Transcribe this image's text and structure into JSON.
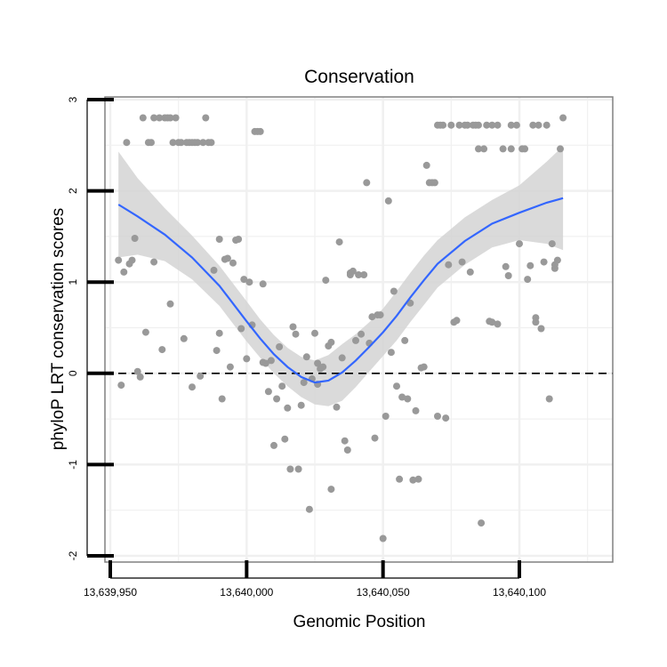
{
  "chart_data": {
    "type": "scatter",
    "title": "Conservation",
    "xlabel": "Genomic Position",
    "ylabel": "phyloP LRT conservation scores",
    "xlim": [
      13639950,
      13640105
    ],
    "ylim": [
      -2,
      3
    ],
    "x_ticks": [
      13639950,
      13640000,
      13640050,
      13640100
    ],
    "x_tick_labels": [
      "13,639,950",
      "13,640,000",
      "13,640,050",
      "13,640,100"
    ],
    "y_ticks": [
      -2,
      -1,
      0,
      1,
      2,
      3
    ],
    "y_tick_labels": [
      "-2",
      "-1",
      "0",
      "1",
      "2",
      "3"
    ],
    "grid": true,
    "reference_line": {
      "y": 0,
      "style": "dashed"
    },
    "colors": {
      "points": "#999999",
      "smooth_line": "#3366ff",
      "confidence_band": "#d4d4d4",
      "grid": "#f0f0f0",
      "frame": "#808080"
    },
    "points": [
      [
        13639953,
        1.24
      ],
      [
        13639954,
        -0.13
      ],
      [
        13639955,
        1.11
      ],
      [
        13639956,
        2.53
      ],
      [
        13639957,
        1.2
      ],
      [
        13639958,
        1.24
      ],
      [
        13639959,
        1.48
      ],
      [
        13639960,
        0.02
      ],
      [
        13639961,
        -0.04
      ],
      [
        13639962,
        2.8
      ],
      [
        13639963,
        0.45
      ],
      [
        13639964,
        2.53
      ],
      [
        13639965,
        2.53
      ],
      [
        13639966,
        1.22
      ],
      [
        13639966,
        2.8
      ],
      [
        13639968,
        2.8
      ],
      [
        13639969,
        0.26
      ],
      [
        13639970,
        2.8
      ],
      [
        13639971,
        2.8
      ],
      [
        13639972,
        0.76
      ],
      [
        13639972,
        2.8
      ],
      [
        13639973,
        2.53
      ],
      [
        13639974,
        2.8
      ],
      [
        13639975,
        2.53
      ],
      [
        13639976,
        2.53
      ],
      [
        13639977,
        0.38
      ],
      [
        13639978,
        2.53
      ],
      [
        13639979,
        2.53
      ],
      [
        13639980,
        -0.15
      ],
      [
        13639980,
        2.53
      ],
      [
        13639981,
        2.53
      ],
      [
        13639982,
        2.53
      ],
      [
        13639983,
        -0.03
      ],
      [
        13639984,
        2.53
      ],
      [
        13639985,
        2.8
      ],
      [
        13639986,
        2.53
      ],
      [
        13639987,
        2.53
      ],
      [
        13639988,
        1.13
      ],
      [
        13639989,
        0.25
      ],
      [
        13639990,
        0.44
      ],
      [
        13639990,
        1.47
      ],
      [
        13639991,
        -0.28
      ],
      [
        13639992,
        1.25
      ],
      [
        13639993,
        1.26
      ],
      [
        13639994,
        0.07
      ],
      [
        13639995,
        1.21
      ],
      [
        13639996,
        1.46
      ],
      [
        13639997,
        1.47
      ],
      [
        13639998,
        0.49
      ],
      [
        13639999,
        1.03
      ],
      [
        13640000,
        0.16
      ],
      [
        13640001,
        1.0
      ],
      [
        13640002,
        0.53
      ],
      [
        13640003,
        2.65
      ],
      [
        13640004,
        2.65
      ],
      [
        13640005,
        2.65
      ],
      [
        13640006,
        0.98
      ],
      [
        13640006,
        0.12
      ],
      [
        13640007,
        0.11
      ],
      [
        13640008,
        -0.2
      ],
      [
        13640009,
        0.14
      ],
      [
        13640010,
        -0.79
      ],
      [
        13640011,
        -0.28
      ],
      [
        13640012,
        0.29
      ],
      [
        13640013,
        -0.14
      ],
      [
        13640014,
        -0.72
      ],
      [
        13640015,
        -0.38
      ],
      [
        13640016,
        -1.05
      ],
      [
        13640017,
        0.51
      ],
      [
        13640018,
        0.43
      ],
      [
        13640019,
        -1.05
      ],
      [
        13640020,
        -0.35
      ],
      [
        13640021,
        -0.1
      ],
      [
        13640022,
        0.18
      ],
      [
        13640023,
        -1.49
      ],
      [
        13640024,
        -0.06
      ],
      [
        13640025,
        0.44
      ],
      [
        13640026,
        -0.12
      ],
      [
        13640026,
        0.11
      ],
      [
        13640027,
        0.05
      ],
      [
        13640028,
        0.07
      ],
      [
        13640029,
        1.02
      ],
      [
        13640030,
        0.3
      ],
      [
        13640031,
        0.34
      ],
      [
        13640031,
        -1.27
      ],
      [
        13640033,
        -0.37
      ],
      [
        13640034,
        1.44
      ],
      [
        13640035,
        0.17
      ],
      [
        13640036,
        -0.74
      ],
      [
        13640037,
        -0.84
      ],
      [
        13640038,
        1.08
      ],
      [
        13640038,
        1.1
      ],
      [
        13640039,
        1.12
      ],
      [
        13640040,
        0.36
      ],
      [
        13640041,
        1.08
      ],
      [
        13640042,
        0.43
      ],
      [
        13640043,
        1.08
      ],
      [
        13640044,
        2.09
      ],
      [
        13640045,
        0.33
      ],
      [
        13640046,
        0.62
      ],
      [
        13640047,
        -0.71
      ],
      [
        13640048,
        0.64
      ],
      [
        13640049,
        0.64
      ],
      [
        13640050,
        -1.81
      ],
      [
        13640051,
        -0.47
      ],
      [
        13640052,
        1.89
      ],
      [
        13640053,
        0.23
      ],
      [
        13640054,
        0.9
      ],
      [
        13640055,
        -0.14
      ],
      [
        13640056,
        -1.16
      ],
      [
        13640057,
        -0.26
      ],
      [
        13640058,
        0.36
      ],
      [
        13640059,
        -0.28
      ],
      [
        13640060,
        0.77
      ],
      [
        13640061,
        -1.17
      ],
      [
        13640062,
        -0.41
      ],
      [
        13640063,
        -1.16
      ],
      [
        13640064,
        0.06
      ],
      [
        13640065,
        0.07
      ],
      [
        13640066,
        2.28
      ],
      [
        13640067,
        2.09
      ],
      [
        13640068,
        2.09
      ],
      [
        13640069,
        2.09
      ],
      [
        13640070,
        -0.47
      ],
      [
        13640070,
        2.72
      ],
      [
        13640071,
        2.72
      ],
      [
        13640072,
        2.72
      ],
      [
        13640073,
        -0.49
      ],
      [
        13640074,
        1.19
      ],
      [
        13640075,
        2.72
      ],
      [
        13640076,
        0.56
      ],
      [
        13640077,
        0.58
      ],
      [
        13640078,
        2.72
      ],
      [
        13640079,
        1.22
      ],
      [
        13640080,
        2.72
      ],
      [
        13640081,
        2.72
      ],
      [
        13640082,
        1.11
      ],
      [
        13640083,
        2.72
      ],
      [
        13640084,
        2.72
      ],
      [
        13640085,
        2.72
      ],
      [
        13640085,
        2.46
      ],
      [
        13640086,
        -1.64
      ],
      [
        13640087,
        2.46
      ],
      [
        13640088,
        2.72
      ],
      [
        13640089,
        0.57
      ],
      [
        13640090,
        2.72
      ],
      [
        13640090,
        0.56
      ],
      [
        13640092,
        2.72
      ],
      [
        13640092,
        0.54
      ],
      [
        13640094,
        2.46
      ],
      [
        13640095,
        1.17
      ],
      [
        13640096,
        1.07
      ],
      [
        13640097,
        2.46
      ],
      [
        13640097,
        2.72
      ],
      [
        13640099,
        2.72
      ],
      [
        13640100,
        1.42
      ],
      [
        13640101,
        2.46
      ],
      [
        13640102,
        2.46
      ],
      [
        13640103,
        1.03
      ],
      [
        13640104,
        1.18
      ],
      [
        13640105,
        2.72
      ],
      [
        13640106,
        0.56
      ],
      [
        13640106,
        0.61
      ],
      [
        13640107,
        2.72
      ],
      [
        13640108,
        0.49
      ],
      [
        13640109,
        1.22
      ],
      [
        13640110,
        2.72
      ],
      [
        13640111,
        -0.28
      ],
      [
        13640112,
        1.42
      ],
      [
        13640113,
        1.15
      ],
      [
        13640113,
        1.19
      ],
      [
        13640114,
        1.24
      ],
      [
        13640115,
        2.46
      ],
      [
        13640116,
        2.8
      ]
    ],
    "smooth_fit": {
      "x": [
        13639953,
        13639960,
        13639970,
        13639980,
        13639990,
        13640000,
        13640005,
        13640010,
        13640015,
        13640020,
        13640025,
        13640030,
        13640035,
        13640040,
        13640045,
        13640050,
        13640055,
        13640060,
        13640065,
        13640070,
        13640080,
        13640090,
        13640100,
        13640110,
        13640116
      ],
      "y": [
        1.85,
        1.72,
        1.52,
        1.27,
        0.96,
        0.57,
        0.38,
        0.21,
        0.07,
        -0.04,
        -0.1,
        -0.08,
        0.01,
        0.14,
        0.29,
        0.45,
        0.63,
        0.83,
        1.02,
        1.2,
        1.45,
        1.64,
        1.76,
        1.87,
        1.92
      ],
      "lower": [
        1.27,
        1.3,
        1.23,
        1.03,
        0.74,
        0.35,
        0.17,
        0.0,
        -0.14,
        -0.26,
        -0.34,
        -0.36,
        -0.3,
        -0.15,
        0.02,
        0.19,
        0.36,
        0.56,
        0.75,
        0.94,
        1.19,
        1.38,
        1.46,
        1.42,
        1.35
      ],
      "upper": [
        2.43,
        2.14,
        1.81,
        1.51,
        1.18,
        0.79,
        0.59,
        0.42,
        0.28,
        0.18,
        0.14,
        0.2,
        0.32,
        0.43,
        0.56,
        0.71,
        0.9,
        1.1,
        1.29,
        1.46,
        1.71,
        1.9,
        2.06,
        2.32,
        2.49
      ]
    }
  }
}
